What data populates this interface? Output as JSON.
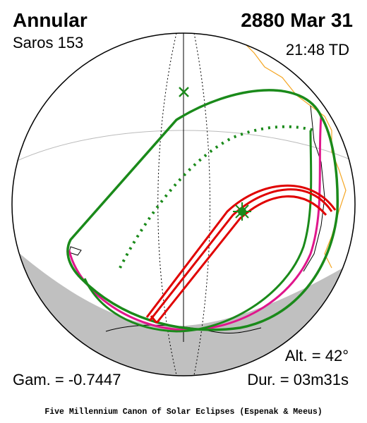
{
  "header": {
    "title": "Annular",
    "saros": "Saros 153",
    "date": "2880 Mar 31",
    "time": "21:48 TD"
  },
  "footer": {
    "altitude": "Alt. = 42°",
    "gamma": "Gam. = -0.7447",
    "duration": "Dur. = 03m31s",
    "credit": "Five Millennium Canon of Solar Eclipses (Espenak & Meeus)"
  }
}
